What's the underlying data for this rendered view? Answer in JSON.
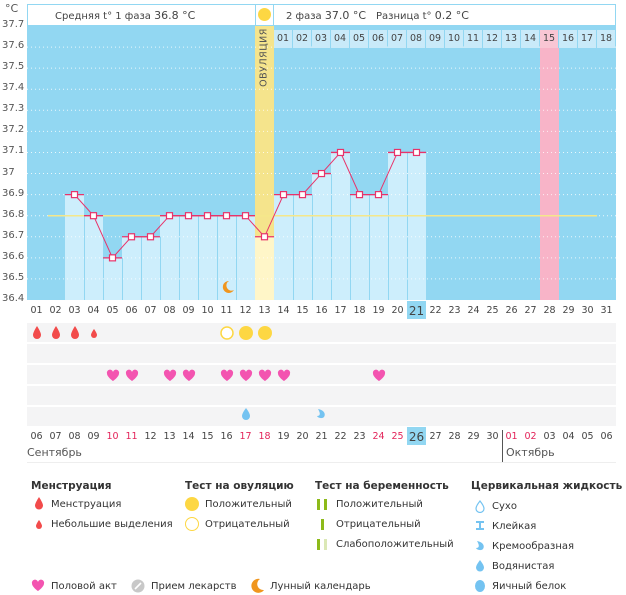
{
  "header": {
    "unit": "°C",
    "phase1_label": "Средняя t° 1 фаза",
    "phase1_value": "36.8 °C",
    "phase2_label": "2 фаза",
    "phase2_value": "37.0 °C",
    "diff_label": "Разница t°",
    "diff_value": "0.2 °C",
    "ovulation_label": "ОВУЛЯЦИЯ"
  },
  "colors": {
    "plot_bg": "#92d7f2",
    "bar_fill": "#cdeefc",
    "line": "#e8336a",
    "ovulation_band": "#f5e48c",
    "pink_band": "#f8b4c8",
    "coverline": "#f5e78a",
    "today": "#92d7f2"
  },
  "chart_data": {
    "type": "line",
    "title": "",
    "xlabel": "",
    "ylabel": "°C",
    "ylim": [
      36.4,
      37.7
    ],
    "yticks": [
      "37.7",
      "37.6",
      "37.5",
      "37.4",
      "37.3",
      "37.2",
      "37.1",
      "37",
      "36.9",
      "36.8",
      "36.7",
      "36.6",
      "36.5",
      "36.4"
    ],
    "grid": true,
    "x": [
      "01",
      "02",
      "03",
      "04",
      "05",
      "06",
      "07",
      "08",
      "09",
      "10",
      "11",
      "12",
      "13",
      "14",
      "15",
      "16",
      "17",
      "18",
      "19",
      "20",
      "21",
      "22",
      "23",
      "24",
      "25",
      "26",
      "27",
      "28",
      "29",
      "30",
      "31"
    ],
    "series": [
      {
        "name": "Базальная температура",
        "values": [
          null,
          null,
          36.9,
          36.8,
          36.6,
          36.7,
          36.7,
          36.8,
          36.8,
          36.8,
          36.8,
          36.8,
          36.7,
          36.9,
          36.9,
          37.0,
          37.1,
          36.9,
          36.9,
          37.1,
          37.1,
          null,
          null,
          null,
          null,
          null,
          null,
          null,
          null,
          null,
          null
        ]
      }
    ],
    "coverline": {
      "value": 36.8,
      "from_day": 2,
      "to_day": 30
    },
    "ovulation_day": 13,
    "highlight_day": 28,
    "today_day": 21,
    "phase2_day_numbers": [
      "01",
      "02",
      "03",
      "04",
      "05",
      "06",
      "07",
      "08",
      "09",
      "10",
      "11",
      "12",
      "13",
      "14",
      "15",
      "16",
      "17",
      "18"
    ],
    "phase2_highlight_index": 15
  },
  "calendar": {
    "dates": [
      "06",
      "07",
      "08",
      "09",
      "10",
      "11",
      "12",
      "13",
      "14",
      "15",
      "16",
      "17",
      "18",
      "19",
      "20",
      "21",
      "22",
      "23",
      "24",
      "25",
      "26",
      "27",
      "28",
      "29",
      "30",
      "01",
      "02",
      "03",
      "04",
      "05",
      "06"
    ],
    "red_dates_idx": [
      4,
      5,
      11,
      12,
      18,
      19,
      25,
      26
    ],
    "today_idx": 20,
    "month_start": "Сентябрь",
    "month_next": "Октябрь",
    "month_next_idx": 25
  },
  "symbols": {
    "menstruation": [
      {
        "day": 1,
        "type": "heavy"
      },
      {
        "day": 2,
        "type": "heavy"
      },
      {
        "day": 3,
        "type": "heavy"
      },
      {
        "day": 4,
        "type": "light"
      }
    ],
    "ovulation_test": [
      {
        "day": 11,
        "type": "negative"
      },
      {
        "day": 12,
        "type": "positive"
      },
      {
        "day": 13,
        "type": "positive"
      }
    ],
    "intercourse": [
      5,
      6,
      8,
      9,
      11,
      12,
      13,
      14,
      19
    ],
    "cervical_fluid": [
      {
        "day": 12,
        "type": "watery"
      },
      {
        "day": 16,
        "type": "creamy"
      }
    ],
    "moon": [
      11
    ]
  },
  "legend": {
    "menstruation_title": "Менструация",
    "menstruation_items": [
      "Менструация",
      "Небольшие выделения"
    ],
    "ovulation_title": "Тест на овуляцию",
    "ovulation_items": [
      "Положительный",
      "Отрицательный"
    ],
    "pregnancy_title": "Тест на беременность",
    "pregnancy_items": [
      "Положительный",
      "Отрицательный",
      "Слабоположительный"
    ],
    "cervical_title": "Цервикальная жидкость",
    "cervical_items": [
      "Сухо",
      "Клейкая",
      "Кремообразная",
      "Водянистая",
      "Яичный белок"
    ],
    "bottom_items": [
      "Половой акт",
      "Прием лекарств",
      "Лунный календарь"
    ]
  }
}
